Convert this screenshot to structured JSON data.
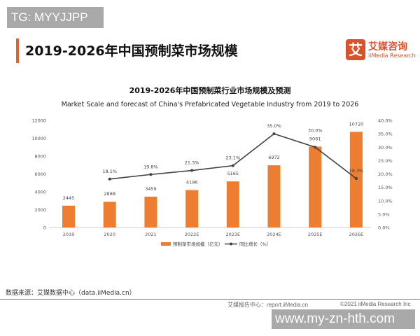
{
  "watermark_top": "TG: MYYJJPP",
  "watermark_bottom": "www.my-zn-hth.com",
  "page_title": "2019-2026年中国预制菜市场规模",
  "logo": {
    "mark": "艾",
    "cn": "艾媒咨询",
    "en": "iiMedia Research"
  },
  "chart_data": {
    "type": "bar+line",
    "title": "2019-2026年中国预制菜行业市场规模及预测",
    "subtitle": "Market Scale and forecast of China's Prefabricated Vegetable Industry from 2019 to 2026",
    "categories": [
      "2019",
      "2020",
      "2021",
      "2022E",
      "2023E",
      "2024E",
      "2025E",
      "2026E"
    ],
    "series": [
      {
        "name": "预制菜市场规模（亿元）",
        "type": "bar",
        "axis": "left",
        "color": "#ED7D31",
        "values": [
          2445,
          2888,
          3459,
          4196,
          5165,
          6972,
          9061,
          10720
        ],
        "labels": [
          "2445",
          "2888",
          "3459",
          "4196",
          "5165",
          "6972",
          "9061",
          "10720"
        ]
      },
      {
        "name": "同比增长（%）",
        "type": "line",
        "axis": "right",
        "color": "#404040",
        "values": [
          null,
          18.1,
          19.8,
          21.3,
          23.1,
          35.0,
          30.0,
          18.3
        ],
        "labels": [
          "",
          "18.1%",
          "19.8%",
          "21.3%",
          "23.1%",
          "35.0%",
          "30.0%",
          "18.3%"
        ]
      }
    ],
    "left_axis": {
      "ylim": [
        0,
        12000
      ],
      "ticks": [
        "0",
        "2000",
        "4000",
        "6000",
        "8000",
        "10000",
        "12000"
      ]
    },
    "right_axis": {
      "ylim": [
        0,
        40
      ],
      "ticks": [
        "0.0%",
        "5.0%",
        "10.0%",
        "15.0%",
        "20.0%",
        "25.0%",
        "30.0%",
        "35.0%",
        "40.0%"
      ]
    },
    "grid": false,
    "legend": "bottom"
  },
  "source": "数据来源：艾媒数据中心（data.iiMedia.cn）",
  "footer": {
    "report": "艾媒报告中心：report.iiMedia.cn",
    "copyright": "©2021  iiMedia Research  Inc"
  }
}
